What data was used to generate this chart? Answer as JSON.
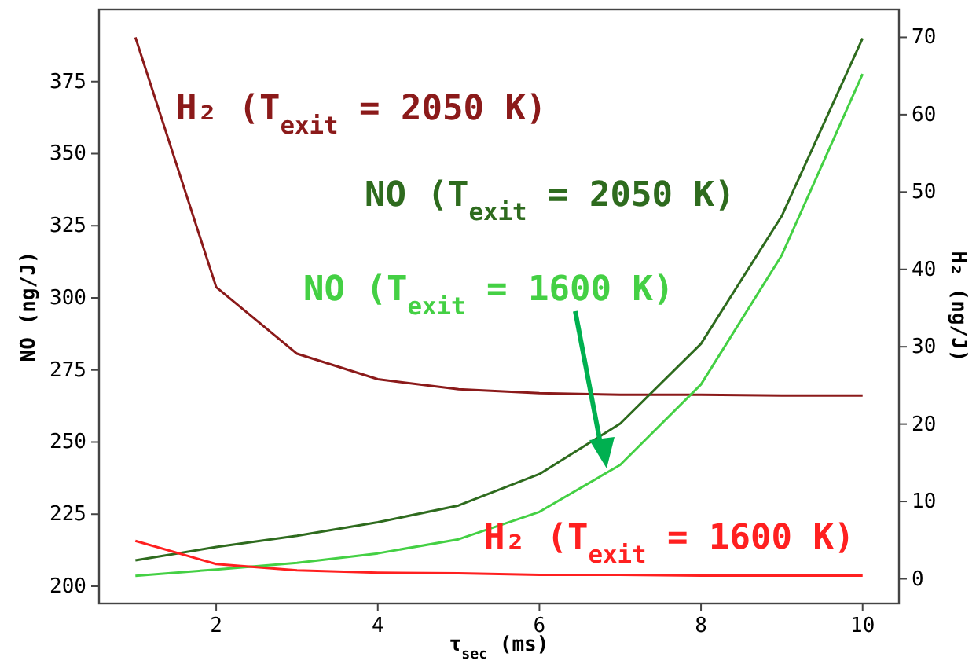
{
  "chart_data": {
    "type": "line",
    "xlabel": "τ$_{sec}$ (ms)",
    "ylabel": "NO (ng/J)",
    "y2label": "H₂ (ng/J)",
    "x": [
      1,
      2,
      3,
      4,
      5,
      6,
      7,
      8,
      9,
      10
    ],
    "xlim": [
      0.55,
      10.45
    ],
    "xticks": [
      2,
      4,
      6,
      8,
      10
    ],
    "ylim": [
      194,
      400
    ],
    "yticks": [
      200,
      225,
      250,
      275,
      300,
      325,
      350,
      375
    ],
    "y2lim": [
      -3.2,
      73.6
    ],
    "y2ticks": [
      0,
      10,
      20,
      30,
      40,
      50,
      60,
      70
    ],
    "grid": false,
    "legend": false,
    "marker": "none",
    "line_style": "solid",
    "series": [
      {
        "name": "H₂ (T$_{exit}$ = 2050 K)",
        "color": "#8b1a1a",
        "axis": "y2",
        "values": [
          70,
          37.7,
          29.1,
          25.8,
          24.5,
          24,
          23.8,
          23.8,
          23.7,
          23.7
        ]
      },
      {
        "name": "NO (T$_{exit}$ = 2050 K)",
        "color": "#2e6b1e",
        "values": [
          209,
          213.6,
          217.5,
          222.2,
          228,
          238.9,
          256.4,
          284.1,
          328.4,
          390
        ]
      },
      {
        "name": "NO (T$_{exit}$ = 1600 K)",
        "color": "#44d044",
        "values": [
          203.6,
          205.8,
          208.1,
          211.4,
          216.3,
          225.8,
          242.1,
          270,
          314.8,
          377.6
        ]
      },
      {
        "name": "H₂ (T$_{exit}$ = 1600 K)",
        "color": "#ff2020",
        "axis": "y2",
        "values": [
          4.9,
          1.9,
          1.1,
          0.8,
          0.7,
          0.5,
          0.5,
          0.4,
          0.4,
          0.4
        ]
      }
    ]
  }
}
